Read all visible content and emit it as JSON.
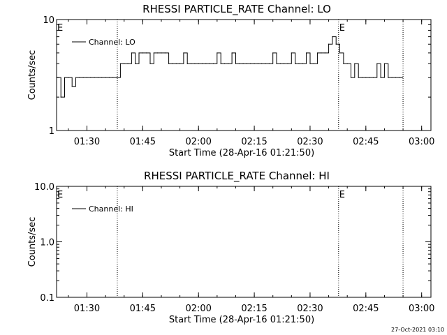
{
  "footer": "27-Oct-2021 03:10",
  "chart_data": [
    {
      "type": "line",
      "title": "RHESSI PARTICLE_RATE Channel: LO",
      "xlabel": "Start Time (28-Apr-16 01:21:50)",
      "ylabel": "Counts/sec",
      "x_ticks": [
        "01:30",
        "01:45",
        "02:00",
        "02:15",
        "02:30",
        "02:45",
        "03:00"
      ],
      "y_ticks": [
        "1",
        "10"
      ],
      "y_scale": "log",
      "ylim": [
        1,
        10
      ],
      "xlim": [
        "01:21:50",
        "03:02:30"
      ],
      "legend": {
        "position": "top-left",
        "entries": [
          "Channel: LO"
        ]
      },
      "event_markers": [
        {
          "time": "01:21:50",
          "label": "E"
        },
        {
          "time": "02:37:40",
          "label": "E"
        }
      ],
      "dotted_lines": [
        "01:38:10",
        "02:37:40",
        "02:55:00"
      ],
      "series": [
        {
          "name": "Channel: LO",
          "x": [
            "01:22:00",
            "01:23:00",
            "01:24:00",
            "01:25:00",
            "01:26:00",
            "01:27:00",
            "01:28:00",
            "01:29:00",
            "01:30:00",
            "01:31:00",
            "01:32:00",
            "01:33:00",
            "01:34:00",
            "01:35:00",
            "01:36:00",
            "01:37:00",
            "01:38:00",
            "01:39:00",
            "01:40:00",
            "01:41:00",
            "01:42:00",
            "01:43:00",
            "01:44:00",
            "01:45:00",
            "01:46:00",
            "01:47:00",
            "01:48:00",
            "01:49:00",
            "01:50:00",
            "01:51:00",
            "01:52:00",
            "01:53:00",
            "01:54:00",
            "01:55:00",
            "01:56:00",
            "01:57:00",
            "01:58:00",
            "01:59:00",
            "02:00:00",
            "02:01:00",
            "02:02:00",
            "02:03:00",
            "02:04:00",
            "02:05:00",
            "02:06:00",
            "02:07:00",
            "02:08:00",
            "02:09:00",
            "02:10:00",
            "02:11:00",
            "02:12:00",
            "02:13:00",
            "02:14:00",
            "02:15:00",
            "02:16:00",
            "02:17:00",
            "02:18:00",
            "02:19:00",
            "02:20:00",
            "02:21:00",
            "02:22:00",
            "02:23:00",
            "02:24:00",
            "02:25:00",
            "02:26:00",
            "02:27:00",
            "02:28:00",
            "02:29:00",
            "02:30:00",
            "02:31:00",
            "02:32:00",
            "02:33:00",
            "02:34:00",
            "02:35:00",
            "02:36:00",
            "02:37:00",
            "02:38:00",
            "02:39:00",
            "02:40:00",
            "02:41:00",
            "02:42:00",
            "02:43:00",
            "02:44:00",
            "02:45:00",
            "02:46:00",
            "02:47:00",
            "02:48:00",
            "02:49:00",
            "02:50:00",
            "02:51:00",
            "02:52:00",
            "02:53:00",
            "02:54:00"
          ],
          "values": [
            3,
            2,
            3,
            3,
            2.5,
            3,
            3,
            3,
            3,
            3,
            3,
            3,
            3,
            3,
            3,
            3,
            3,
            4,
            4,
            4,
            5,
            4,
            5,
            5,
            5,
            4,
            5,
            5,
            5,
            5,
            4,
            4,
            4,
            4,
            5,
            4,
            4,
            4,
            4,
            4,
            4,
            4,
            4,
            5,
            4,
            4,
            4,
            5,
            4,
            4,
            4,
            4,
            4,
            4,
            4,
            4,
            4,
            4,
            5,
            4,
            4,
            4,
            4,
            5,
            4,
            4,
            4,
            5,
            4,
            4,
            5,
            5,
            5,
            6,
            7,
            6,
            5,
            4,
            4,
            3,
            4,
            3,
            3,
            3,
            3,
            3,
            4,
            3,
            4,
            3,
            3,
            3,
            3
          ]
        }
      ]
    },
    {
      "type": "line",
      "title": "RHESSI PARTICLE_RATE Channel: HI",
      "xlabel": "Start Time (28-Apr-16 01:21:50)",
      "ylabel": "Counts/sec",
      "x_ticks": [
        "01:30",
        "01:45",
        "02:00",
        "02:15",
        "02:30",
        "02:45",
        "03:00"
      ],
      "y_ticks": [
        "0.1",
        "1.0",
        "10.0"
      ],
      "y_scale": "log",
      "ylim": [
        0.1,
        10
      ],
      "xlim": [
        "01:21:50",
        "03:02:30"
      ],
      "legend": {
        "position": "top-left",
        "entries": [
          "Channel: HI"
        ]
      },
      "event_markers": [
        {
          "time": "01:21:50",
          "label": "E"
        },
        {
          "time": "02:37:40",
          "label": "E"
        }
      ],
      "dotted_lines": [
        "01:38:10",
        "02:37:40",
        "02:55:00"
      ],
      "series": [
        {
          "name": "Channel: HI",
          "x": [],
          "values": []
        }
      ]
    }
  ]
}
